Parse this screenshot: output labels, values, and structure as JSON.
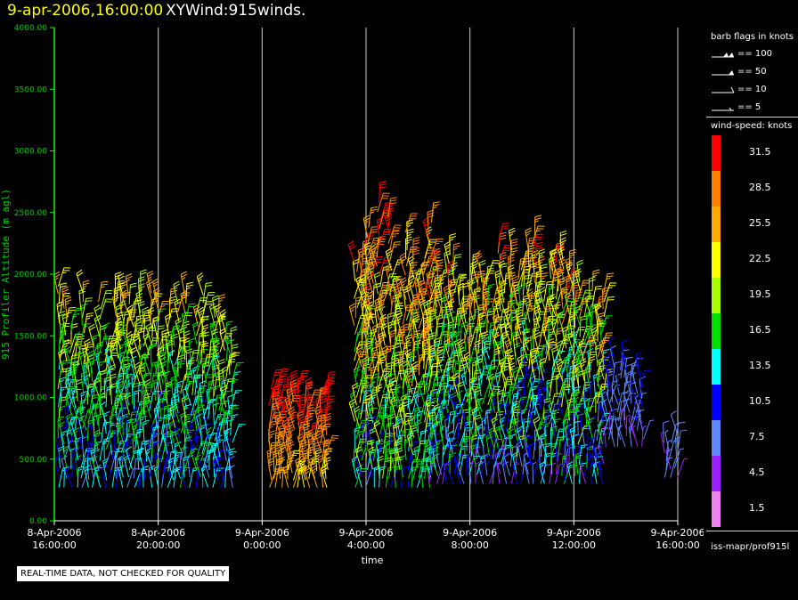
{
  "header": {
    "date_label": "9-apr-2006,16:00:00",
    "title": "XYWind:915winds."
  },
  "chart_data": {
    "type": "wind-barb",
    "xlabel": "time",
    "ylabel": "915 Profiler Altitude (m agl)",
    "ylim": [
      0,
      4000
    ],
    "yticks": [
      "0.00",
      "500.00",
      "1000.00",
      "1500.00",
      "2000.00",
      "2500.00",
      "3000.00",
      "3500.00",
      "4000.00"
    ],
    "xlim_hours": [
      0,
      24
    ],
    "xticks": [
      {
        "hour": 0,
        "line1": "8-Apr-2006",
        "line2": "16:00:00"
      },
      {
        "hour": 4,
        "line1": "8-Apr-2006",
        "line2": "20:00:00"
      },
      {
        "hour": 8,
        "line1": "9-Apr-2006",
        "line2": "0:00:00"
      },
      {
        "hour": 12,
        "line1": "9-Apr-2006",
        "line2": "4:00:00"
      },
      {
        "hour": 16,
        "line1": "9-Apr-2006",
        "line2": "8:00:00"
      },
      {
        "hour": 20,
        "line1": "9-Apr-2006",
        "line2": "12:00:00"
      },
      {
        "hour": 24,
        "line1": "9-Apr-2006",
        "line2": "16:00:00"
      }
    ],
    "vertical_gridlines": true,
    "observation_blocks": [
      {
        "start_hour": 0.2,
        "end_hour": 7.0,
        "min_alt": 270,
        "max_alt": 1900,
        "min_speed": 7,
        "max_speed": 25
      },
      {
        "start_hour": 8.3,
        "end_hour": 10.6,
        "min_alt": 270,
        "max_alt": 1100,
        "min_speed": 22,
        "max_speed": 33
      },
      {
        "start_hour": 11.6,
        "end_hour": 14.5,
        "min_alt": 270,
        "max_alt": 2600,
        "min_speed": 8,
        "max_speed": 33
      },
      {
        "start_hour": 14.5,
        "end_hour": 21.3,
        "min_alt": 300,
        "max_alt": 2400,
        "min_speed": 4,
        "max_speed": 31
      },
      {
        "start_hour": 21.3,
        "end_hour": 22.8,
        "min_alt": 600,
        "max_alt": 1400,
        "min_speed": 4,
        "max_speed": 12
      },
      {
        "start_hour": 23.5,
        "end_hour": 24.0,
        "min_alt": 350,
        "max_alt": 800,
        "min_speed": 4,
        "max_speed": 10
      }
    ]
  },
  "legend": {
    "barb_title": "barb flags in knots",
    "barb_entries": [
      {
        "label": "== 100",
        "knots": 100
      },
      {
        "label": "== 50",
        "knots": 50
      },
      {
        "label": "== 10",
        "knots": 10
      },
      {
        "label": "== 5",
        "knots": 5
      }
    ],
    "colorbar_title": "wind-speed: knots",
    "colorbar": [
      {
        "label": "31.5",
        "color": "#ff0000"
      },
      {
        "label": "28.5",
        "color": "#ff7f00"
      },
      {
        "label": "25.5",
        "color": "#ffaa00"
      },
      {
        "label": "22.5",
        "color": "#ffff00"
      },
      {
        "label": "19.5",
        "color": "#aaff00"
      },
      {
        "label": "16.5",
        "color": "#00e000"
      },
      {
        "label": "13.5",
        "color": "#00ffff"
      },
      {
        "label": "10.5",
        "color": "#0000ff"
      },
      {
        "label": "7.5",
        "color": "#5f87ff"
      },
      {
        "label": "4.5",
        "color": "#9a1fff"
      },
      {
        "label": "1.5",
        "color": "#ee82ee"
      }
    ],
    "source": "iss-mapr/prof915l"
  },
  "notice": "REAL-TIME DATA, NOT CHECKED FOR QUALITY",
  "colors": {
    "axis": "#00ff00",
    "tick_label": "#00cc00",
    "grid": "#d0d0d0",
    "title_date": "#ffff00"
  }
}
